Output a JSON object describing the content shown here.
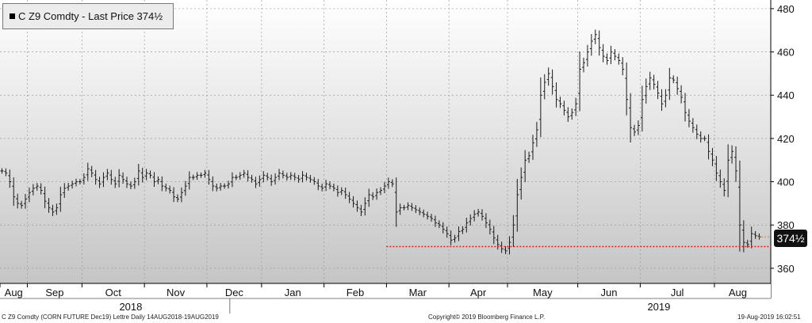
{
  "legend": {
    "text": "C Z9 Comdty - Last Price 374½"
  },
  "footer": {
    "left": "C Z9 Comdty (CORN FUTURE     Dec19) Lettre  Daily 14AUG2018-19AUG2019",
    "center": "Copyright© 2019 Bloomberg Finance L.P.",
    "right": "19-Aug-2019 16:02:51"
  },
  "price_tag": "374½",
  "colors": {
    "bar": "#1a1a1a",
    "support_line": "#e02020",
    "bg_top": "#ffffff",
    "bg_bottom": "#c4c4c4"
  },
  "chart_data": {
    "type": "ohlc",
    "title": "C Z9 Comdty - Last Price 374½",
    "ylim": [
      353,
      484
    ],
    "yticks": [
      360,
      380,
      400,
      420,
      440,
      460,
      480
    ],
    "y_axis_side": "right",
    "grid": true,
    "months": [
      "Aug",
      "Sep",
      "Oct",
      "Nov",
      "Dec",
      "Jan",
      "Feb",
      "Mar",
      "Apr",
      "May",
      "Jun",
      "Jul",
      "Aug"
    ],
    "years": [
      "2018",
      "2019"
    ],
    "last_price": 374.5,
    "support_level": 370,
    "series": [
      {
        "month": "Aug",
        "closes": [
          405,
          404,
          400,
          393,
          390,
          389,
          392
        ]
      },
      {
        "month": "Sep",
        "closes": [
          395,
          397,
          398,
          396,
          391,
          388,
          386,
          388,
          394,
          397,
          398,
          399,
          400,
          400
        ]
      },
      {
        "month": "Oct",
        "closes": [
          402,
          406,
          404,
          401,
          399,
          402,
          404,
          401,
          399,
          403,
          401,
          399,
          398,
          400,
          405,
          402
        ]
      },
      {
        "month": "Nov",
        "closes": [
          404,
          403,
          400,
          401,
          398,
          397,
          396,
          393,
          392,
          395,
          398,
          402,
          402,
          403,
          403,
          404
        ]
      },
      {
        "month": "Dec",
        "closes": [
          401,
          398,
          397,
          398,
          398,
          399,
          402,
          402,
          403,
          404,
          402,
          401,
          399,
          401
        ]
      },
      {
        "month": "Jan",
        "closes": [
          403,
          402,
          400,
          402,
          404,
          403,
          402,
          403,
          402,
          401,
          403,
          402,
          401,
          400,
          398,
          397
        ]
      },
      {
        "month": "Feb",
        "closes": [
          399,
          398,
          397,
          395,
          396,
          394,
          392,
          390,
          388,
          386,
          390,
          394,
          393,
          395,
          396,
          398
        ]
      },
      {
        "month": "Mar",
        "closes": [
          400,
          399,
          386,
          388,
          388,
          389,
          388,
          387,
          386,
          385,
          384,
          383,
          381,
          380,
          378,
          376
        ]
      },
      {
        "month": "Apr",
        "closes": [
          373,
          374,
          377,
          378,
          381,
          383,
          385,
          386,
          384,
          381,
          378,
          374,
          371,
          369,
          368
        ]
      },
      {
        "month": "May",
        "closes": [
          372,
          380,
          394,
          402,
          410,
          412,
          418,
          424,
          440,
          446,
          450,
          444,
          438,
          436,
          433,
          430,
          432,
          436
        ]
      },
      {
        "month": "Jun",
        "closes": [
          452,
          455,
          460,
          465,
          468,
          462,
          458,
          456,
          460,
          458,
          456,
          452,
          438,
          425,
          423,
          426
        ]
      },
      {
        "month": "Jul",
        "closes": [
          438,
          444,
          448,
          445,
          441,
          436,
          440,
          448,
          447,
          443,
          439,
          432,
          428,
          425,
          422,
          420,
          420,
          414,
          410
        ]
      },
      {
        "month": "Aug",
        "closes": [
          404,
          400,
          396,
          410,
          414,
          405,
          380,
          372,
          371,
          376,
          375,
          374.5
        ]
      }
    ]
  }
}
